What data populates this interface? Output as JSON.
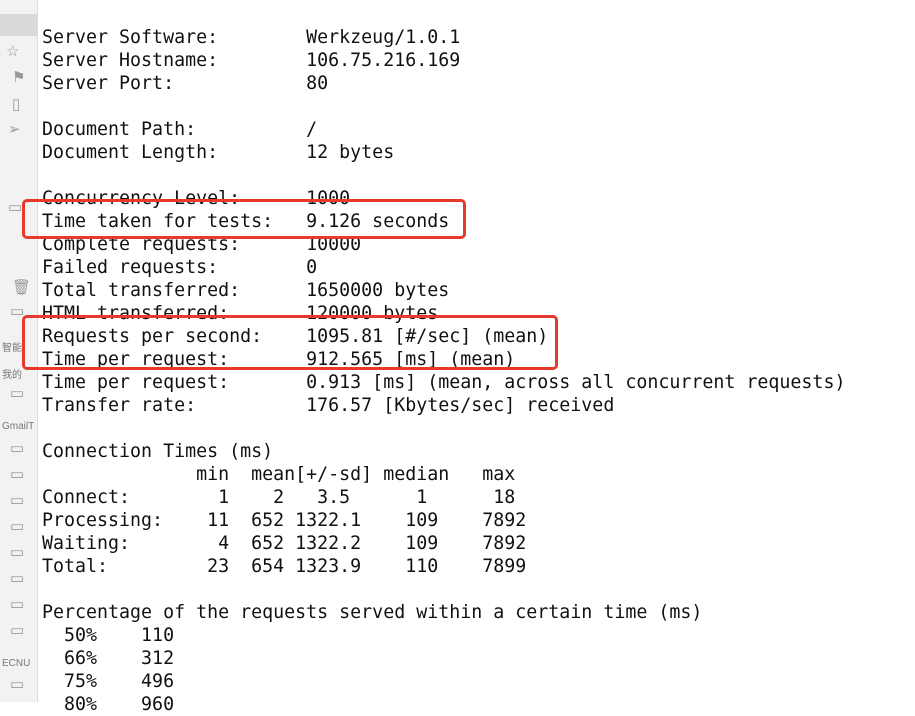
{
  "sidebar": {
    "labels": [
      "智能",
      "我的",
      "GmailT",
      "ECNU"
    ]
  },
  "terminal": {
    "lines": [
      "Server Software:        Werkzeug/1.0.1",
      "Server Hostname:        106.75.216.169",
      "Server Port:            80",
      "",
      "Document Path:          /",
      "Document Length:        12 bytes",
      "",
      "Concurrency Level:      1000",
      "Time taken for tests:   9.126 seconds",
      "Complete requests:      10000",
      "Failed requests:        0",
      "Total transferred:      1650000 bytes",
      "HTML transferred:       120000 bytes",
      "Requests per second:    1095.81 [#/sec] (mean)",
      "Time per request:       912.565 [ms] (mean)",
      "Time per request:       0.913 [ms] (mean, across all concurrent requests)",
      "Transfer rate:          176.57 [Kbytes/sec] received",
      "",
      "Connection Times (ms)",
      "              min  mean[+/-sd] median   max",
      "Connect:        1    2   3.5      1      18",
      "Processing:    11  652 1322.1    109    7892",
      "Waiting:        4  652 1322.2    109    7892",
      "Total:         23  654 1323.9    110    7899",
      "",
      "Percentage of the requests served within a certain time (ms)",
      "  50%    110",
      "  66%    312",
      "  75%    496",
      "  80%    960"
    ]
  },
  "highlight_color": "#e8392f"
}
